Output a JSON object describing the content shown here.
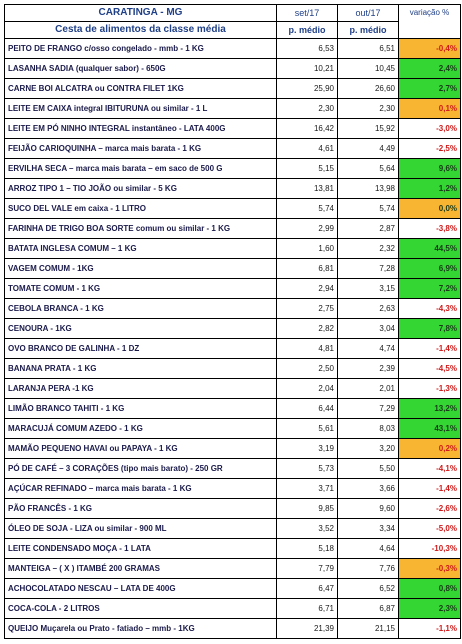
{
  "header": {
    "title": "CARATINGA - MG",
    "subtitle": "Cesta de alimentos da classe média",
    "col1_month": "set/17",
    "col2_month": "out/17",
    "col3": "variação %",
    "col1_sub": "p. médio",
    "col2_sub": "p. médio"
  },
  "rows": [
    {
      "name": "PEITO DE FRANGO c/osso congelado - mmb - 1 KG",
      "v1": "6,53",
      "v2": "6,51",
      "pct": "-0,4%",
      "hl": "orange",
      "neg": true
    },
    {
      "name": "LASANHA SADIA (qualquer sabor) - 650G",
      "v1": "10,21",
      "v2": "10,45",
      "pct": "2,4%",
      "hl": "green",
      "neg": false
    },
    {
      "name": "CARNE BOI  ALCATRA ou  CONTRA FILET  1KG",
      "v1": "25,90",
      "v2": "26,60",
      "pct": "2,7%",
      "hl": "green",
      "neg": false
    },
    {
      "name": "LEITE EM CAIXA  integral IBITURUNA  ou  similar  - 1 L",
      "v1": "2,30",
      "v2": "2,30",
      "pct": "0,1%",
      "hl": "orange",
      "neg": true
    },
    {
      "name": "LEITE EM PÓ NINHO INTEGRAL instantâneo  - LATA 400G",
      "v1": "16,42",
      "v2": "15,92",
      "pct": "-3,0%",
      "hl": "",
      "neg": true
    },
    {
      "name": "FEIJÃO CARIOQUINHA – marca mais barata - 1 KG",
      "v1": "4,61",
      "v2": "4,49",
      "pct": "-2,5%",
      "hl": "",
      "neg": true
    },
    {
      "name": "ERVILHA SECA – marca mais barata – em saco de 500 G",
      "v1": "5,15",
      "v2": "5,64",
      "pct": "9,6%",
      "hl": "green",
      "neg": false
    },
    {
      "name": "ARROZ TIPO 1 – TIO JOÃO  ou  similar  - 5 KG",
      "v1": "13,81",
      "v2": "13,98",
      "pct": "1,2%",
      "hl": "green",
      "neg": false
    },
    {
      "name": "SUCO DEL VALE em caixa - 1 LITRO",
      "v1": "5,74",
      "v2": "5,74",
      "pct": "0,0%",
      "hl": "orange",
      "neg": false
    },
    {
      "name": "FARINHA DE TRIGO  BOA SORTE comum ou similar  - 1 KG",
      "v1": "2,99",
      "v2": "2,87",
      "pct": "-3,8%",
      "hl": "",
      "neg": true
    },
    {
      "name": "BATATA INGLESA COMUM – 1 KG",
      "v1": "1,60",
      "v2": "2,32",
      "pct": "44,5%",
      "hl": "green",
      "neg": false
    },
    {
      "name": "VAGEM COMUM - 1KG",
      "v1": "6,81",
      "v2": "7,28",
      "pct": "6,9%",
      "hl": "green",
      "neg": false
    },
    {
      "name": "TOMATE COMUM - 1 KG",
      "v1": "2,94",
      "v2": "3,15",
      "pct": "7,2%",
      "hl": "green",
      "neg": false
    },
    {
      "name": "CEBOLA BRANCA - 1 KG",
      "v1": "2,75",
      "v2": "2,63",
      "pct": "-4,3%",
      "hl": "",
      "neg": true
    },
    {
      "name": "CENOURA - 1KG",
      "v1": "2,82",
      "v2": "3,04",
      "pct": "7,8%",
      "hl": "green",
      "neg": false
    },
    {
      "name": "OVO BRANCO DE GALINHA - 1 DZ",
      "v1": "4,81",
      "v2": "4,74",
      "pct": "-1,4%",
      "hl": "",
      "neg": true
    },
    {
      "name": "BANANA PRATA - 1 KG",
      "v1": "2,50",
      "v2": "2,39",
      "pct": "-4,5%",
      "hl": "",
      "neg": true
    },
    {
      "name": "LARANJA PERA -1  KG",
      "v1": "2,04",
      "v2": "2,01",
      "pct": "-1,3%",
      "hl": "",
      "neg": true
    },
    {
      "name": "LIMÃO BRANCO TAHITI - 1 KG",
      "v1": "6,44",
      "v2": "7,29",
      "pct": "13,2%",
      "hl": "green",
      "neg": false
    },
    {
      "name": "MARACUJÁ COMUM AZEDO - 1 KG",
      "v1": "5,61",
      "v2": "8,03",
      "pct": "43,1%",
      "hl": "green",
      "neg": false
    },
    {
      "name": "MAMÃO PEQUENO HAVAI ou PAPAYA - 1 KG",
      "v1": "3,19",
      "v2": "3,20",
      "pct": "0,2%",
      "hl": "orange",
      "neg": true
    },
    {
      "name": "PÓ DE CAFÉ  – 3 CORAÇÕES (tipo mais barato)  - 250 GR",
      "v1": "5,73",
      "v2": "5,50",
      "pct": "-4,1%",
      "hl": "",
      "neg": true
    },
    {
      "name": "AÇÚCAR REFINADO – marca mais barata - 1 KG",
      "v1": "3,71",
      "v2": "3,66",
      "pct": "-1,4%",
      "hl": "",
      "neg": true
    },
    {
      "name": "PÃO FRANCÊS - 1 KG",
      "v1": "9,85",
      "v2": "9,60",
      "pct": "-2,6%",
      "hl": "",
      "neg": true
    },
    {
      "name": "ÓLEO DE SOJA - LIZA ou similar - 900 ML",
      "v1": "3,52",
      "v2": "3,34",
      "pct": "-5,0%",
      "hl": "",
      "neg": true
    },
    {
      "name": "LEITE CONDENSADO MOÇA - 1 LATA",
      "v1": "5,18",
      "v2": "4,64",
      "pct": "-10,3%",
      "hl": "",
      "neg": true
    },
    {
      "name": "MANTEIGA –  ( X ) ITAMBÉ     200 GRAMAS",
      "v1": "7,79",
      "v2": "7,76",
      "pct": "-0,3%",
      "hl": "orange",
      "neg": true
    },
    {
      "name": "ACHOCOLATADO NESCAU – LATA DE 400G",
      "v1": "6,47",
      "v2": "6,52",
      "pct": "0,8%",
      "hl": "green",
      "neg": false
    },
    {
      "name": "COCA-COLA - 2 LITROS",
      "v1": "6,71",
      "v2": "6,87",
      "pct": "2,3%",
      "hl": "green",
      "neg": false
    },
    {
      "name": "QUEIJO Muçarela ou Prato - fatiado – mmb - 1KG",
      "v1": "21,39",
      "v2": "21,15",
      "pct": "-1,1%",
      "hl": "",
      "neg": true
    }
  ]
}
